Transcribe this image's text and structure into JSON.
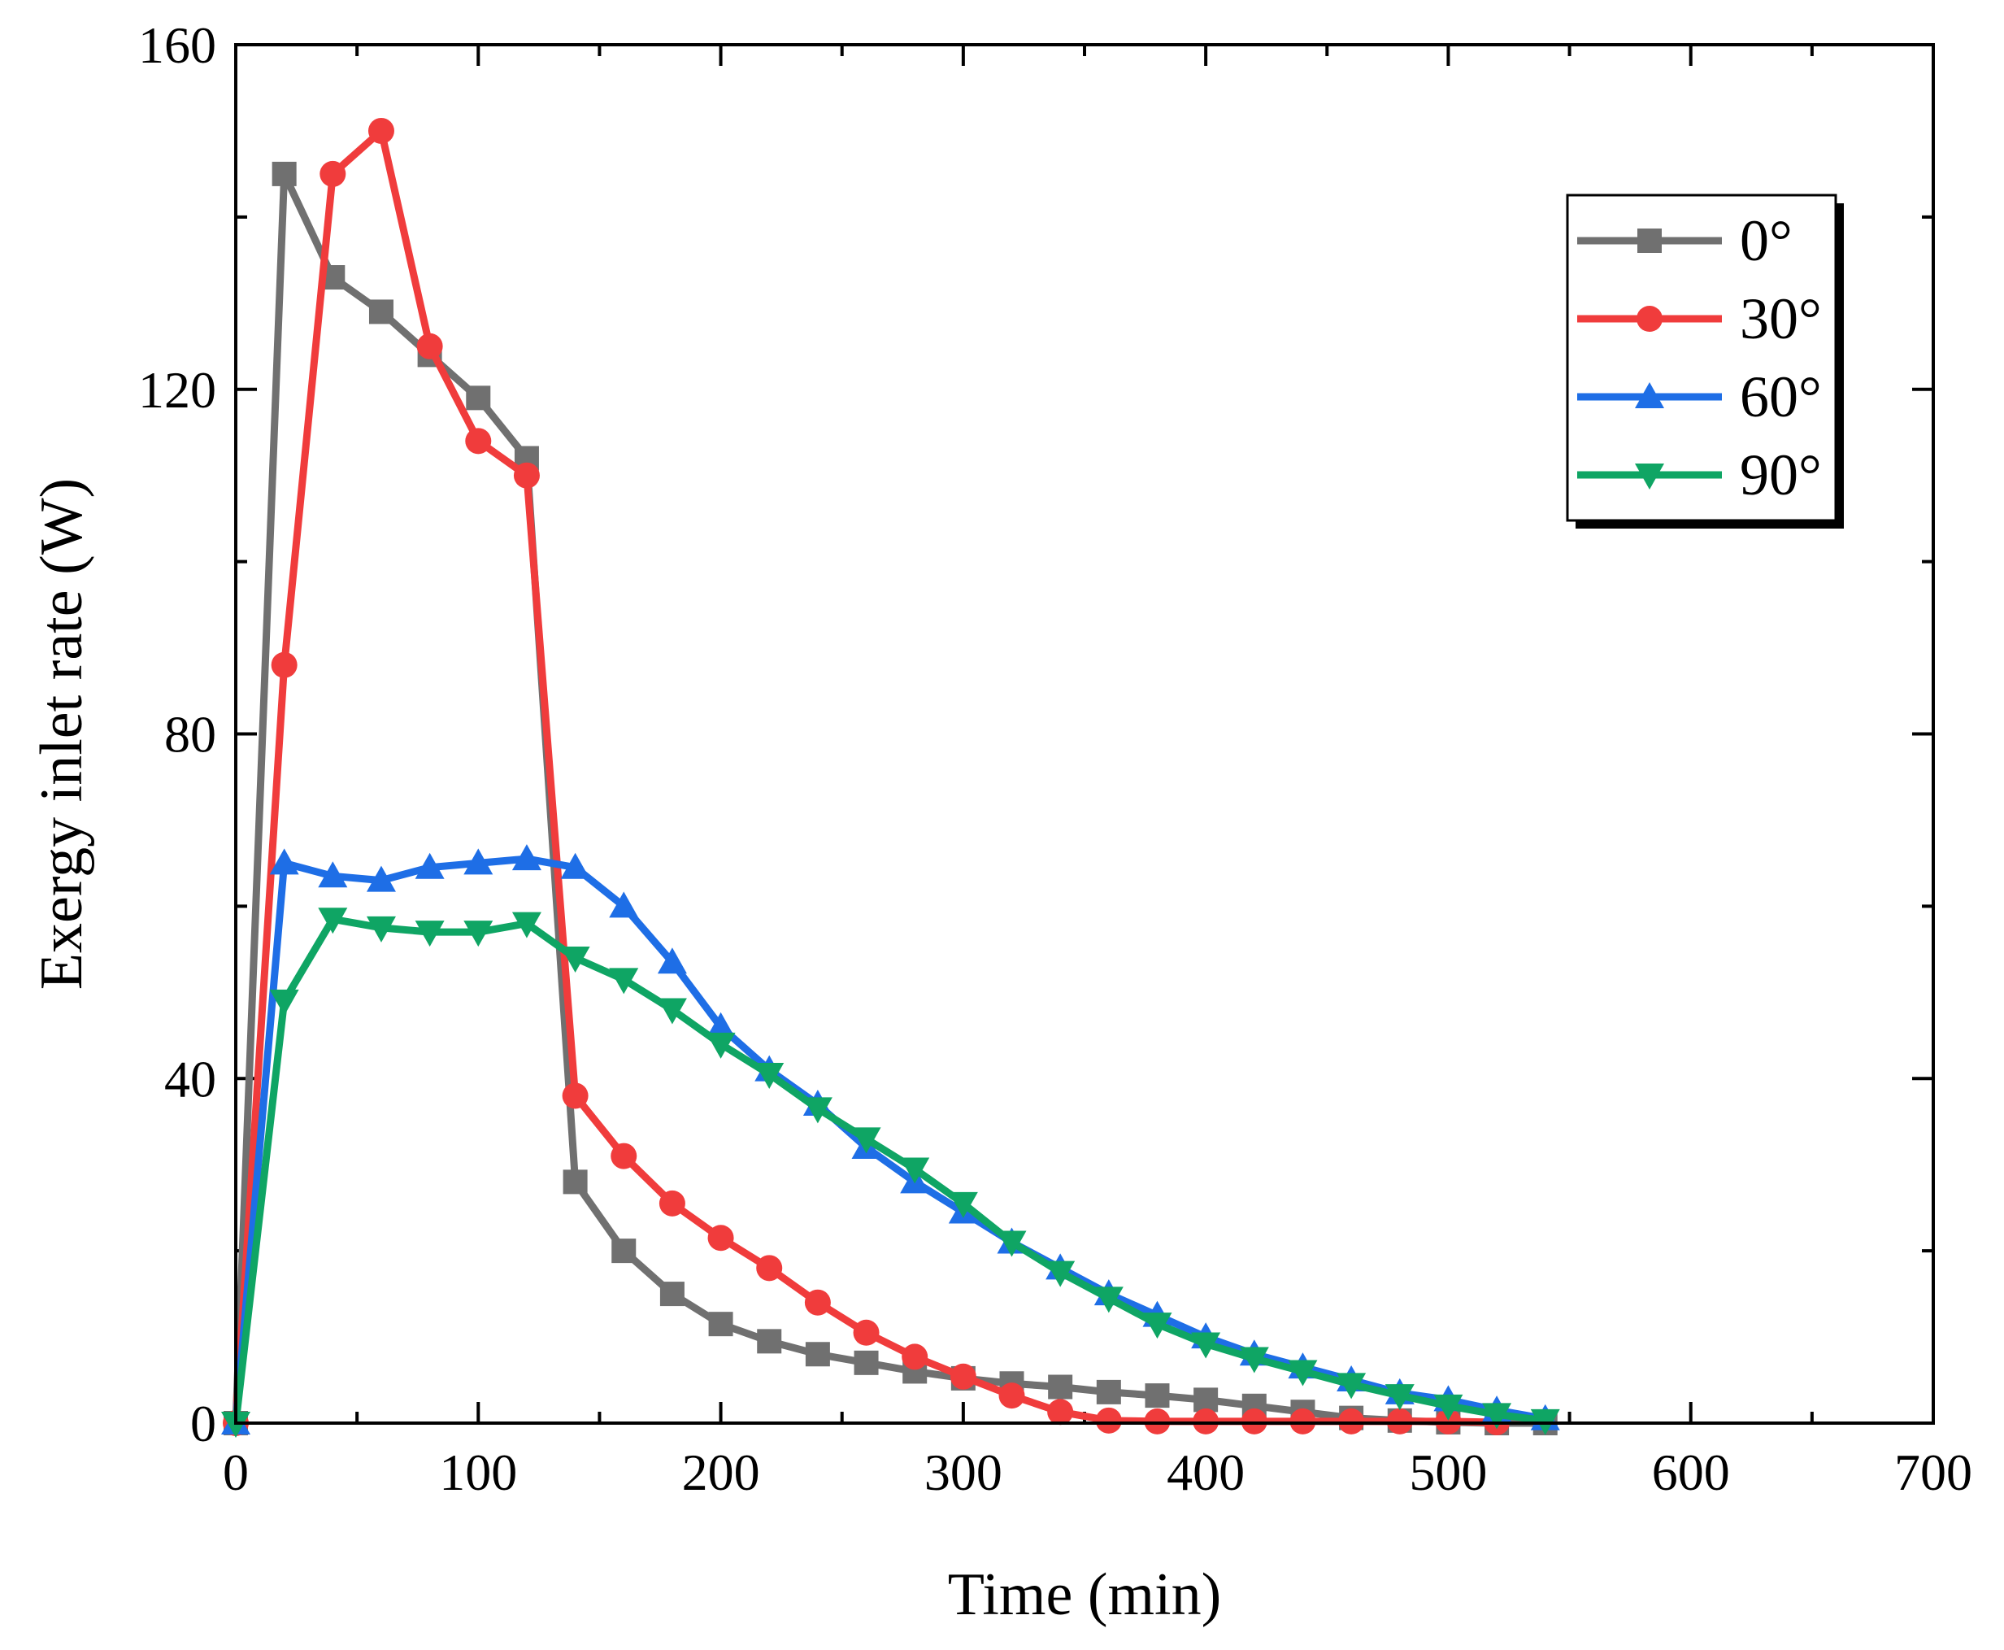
{
  "chart_data": {
    "type": "line",
    "title": "",
    "xlabel": "Time (min)",
    "ylabel": "Exergy inlet rate (W)",
    "xlim": [
      0,
      700
    ],
    "ylim": [
      0,
      160
    ],
    "xticks": [
      0,
      100,
      200,
      300,
      400,
      500,
      600,
      700
    ],
    "yticks": [
      0,
      40,
      80,
      120,
      160
    ],
    "grid": false,
    "legend_position": "top-right",
    "series": [
      {
        "name": "0°",
        "color": "#707070",
        "marker": "square",
        "x": [
          0,
          20,
          40,
          60,
          80,
          100,
          120,
          140,
          160,
          180,
          200,
          220,
          240,
          260,
          280,
          300,
          320,
          340,
          360,
          380,
          400,
          420,
          440,
          460,
          480,
          500,
          520,
          540
        ],
        "y": [
          0,
          145,
          133,
          129,
          124,
          119,
          112,
          28,
          20,
          15,
          11.5,
          9.5,
          8,
          7,
          6,
          5.2,
          4.6,
          4.2,
          3.6,
          3.2,
          2.7,
          2.0,
          1.3,
          0.6,
          0.3,
          0.1,
          0,
          0
        ]
      },
      {
        "name": "30°",
        "color": "#f03c3c",
        "marker": "circle",
        "x": [
          0,
          20,
          40,
          60,
          80,
          100,
          120,
          140,
          160,
          180,
          200,
          220,
          240,
          260,
          280,
          300,
          320,
          340,
          360,
          380,
          400,
          420,
          440,
          460,
          480,
          500,
          520
        ],
        "y": [
          0,
          88,
          145,
          150,
          125,
          114,
          110,
          38,
          31,
          25.5,
          21.5,
          18,
          14,
          10.5,
          7.7,
          5.4,
          3.2,
          1.3,
          0.3,
          0.2,
          0.2,
          0.2,
          0.2,
          0.2,
          0.2,
          0.2,
          0.1
        ]
      },
      {
        "name": "60°",
        "color": "#1e6ee6",
        "marker": "triangle-up",
        "x": [
          0,
          20,
          40,
          60,
          80,
          100,
          120,
          140,
          160,
          180,
          200,
          220,
          240,
          260,
          280,
          300,
          320,
          340,
          360,
          380,
          400,
          420,
          440,
          460,
          480,
          500,
          520,
          540
        ],
        "y": [
          0,
          65,
          63.5,
          63,
          64.5,
          65,
          65.5,
          64.5,
          60,
          53.5,
          46,
          41,
          37,
          32,
          28,
          24.5,
          21,
          18,
          15,
          12.5,
          10,
          8,
          6.5,
          5,
          3.5,
          2.7,
          1.5,
          0.5
        ]
      },
      {
        "name": "90°",
        "color": "#0fa564",
        "marker": "triangle-down",
        "x": [
          0,
          20,
          40,
          60,
          80,
          100,
          120,
          140,
          160,
          180,
          200,
          220,
          240,
          260,
          280,
          300,
          320,
          340,
          360,
          380,
          400,
          420,
          440,
          460,
          480,
          500,
          520,
          540
        ],
        "y": [
          0,
          49,
          58.5,
          57.5,
          57,
          57,
          58,
          54,
          51.5,
          48,
          44,
          40.5,
          36.5,
          33,
          29.5,
          25.5,
          21,
          17.5,
          14.5,
          11.5,
          9.2,
          7.5,
          6,
          4.5,
          3.2,
          2,
          1,
          0.3
        ]
      }
    ]
  }
}
